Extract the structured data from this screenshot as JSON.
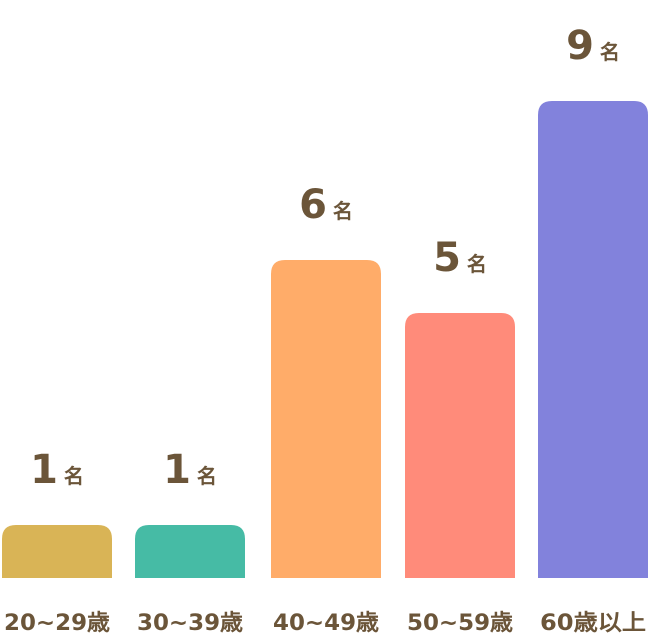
{
  "chart_data": {
    "type": "bar",
    "title": "",
    "xlabel": "",
    "ylabel": "",
    "categories": [
      "20~29歳",
      "30~39歳",
      "40~49歳",
      "50~59歳",
      "60歳以上"
    ],
    "values": [
      1,
      1,
      6,
      5,
      9
    ],
    "unit": "名",
    "ylim": [
      0,
      10
    ],
    "grid": false,
    "colors": [
      "#d9b456",
      "#46bba5",
      "#ffac69",
      "#ff8b7a",
      "#8282dc"
    ],
    "text_color": "#6b5539"
  }
}
